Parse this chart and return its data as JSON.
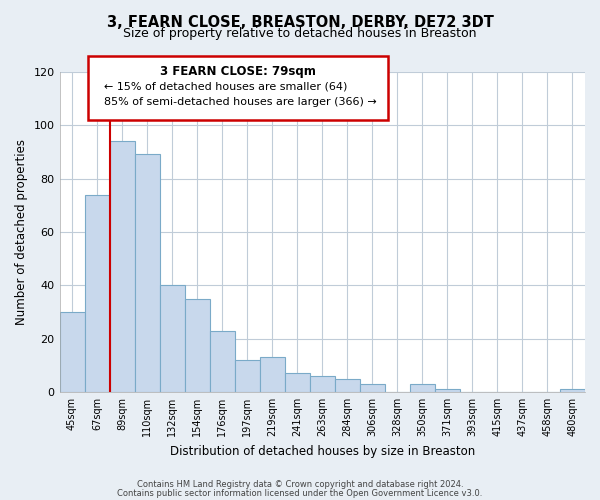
{
  "title": "3, FEARN CLOSE, BREASTON, DERBY, DE72 3DT",
  "subtitle": "Size of property relative to detached houses in Breaston",
  "xlabel": "Distribution of detached houses by size in Breaston",
  "ylabel": "Number of detached properties",
  "bar_color": "#c8d8ec",
  "bar_edge_color": "#7aaac8",
  "categories": [
    "45sqm",
    "67sqm",
    "89sqm",
    "110sqm",
    "132sqm",
    "154sqm",
    "176sqm",
    "197sqm",
    "219sqm",
    "241sqm",
    "263sqm",
    "284sqm",
    "306sqm",
    "328sqm",
    "350sqm",
    "371sqm",
    "393sqm",
    "415sqm",
    "437sqm",
    "458sqm",
    "480sqm"
  ],
  "values": [
    30,
    74,
    94,
    89,
    40,
    35,
    23,
    12,
    13,
    7,
    6,
    5,
    3,
    0,
    3,
    1,
    0,
    0,
    0,
    0,
    1
  ],
  "ylim": [
    0,
    120
  ],
  "yticks": [
    0,
    20,
    40,
    60,
    80,
    100,
    120
  ],
  "marker_color": "#cc0000",
  "annotation_title": "3 FEARN CLOSE: 79sqm",
  "annotation_line1": "← 15% of detached houses are smaller (64)",
  "annotation_line2": "85% of semi-detached houses are larger (366) →",
  "annotation_box_color": "#ffffff",
  "annotation_box_edge": "#cc0000",
  "footer1": "Contains HM Land Registry data © Crown copyright and database right 2024.",
  "footer2": "Contains public sector information licensed under the Open Government Licence v3.0.",
  "background_color": "#e8eef4",
  "plot_bg_color": "#ffffff",
  "grid_color": "#c0ccd8"
}
